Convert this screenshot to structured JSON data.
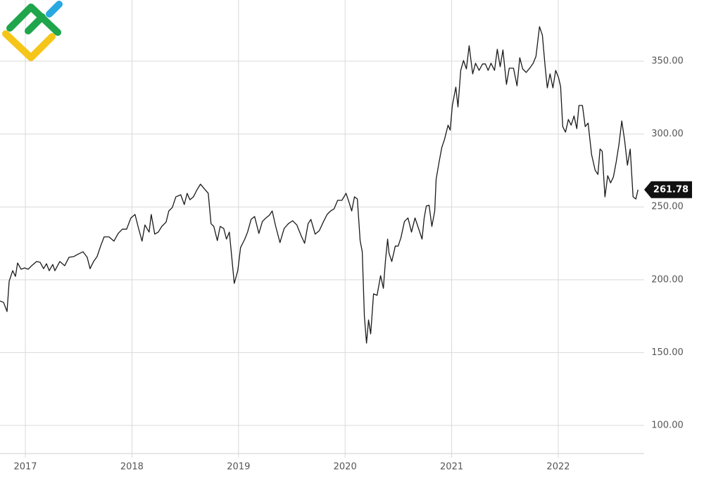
{
  "chart_data": {
    "type": "line",
    "color": "#1a1a1a",
    "grid": true,
    "xlim": [
      2016.762,
      2022.806
    ],
    "ylim": [
      80.7,
      392
    ],
    "xticks": [
      2017,
      2018,
      2019,
      2020,
      2021,
      2022
    ],
    "yticks": [
      {
        "value": 100,
        "label": "100.00"
      },
      {
        "value": 150,
        "label": "150.00"
      },
      {
        "value": 200,
        "label": "200.00"
      },
      {
        "value": 250,
        "label": "250.00"
      },
      {
        "value": 300,
        "label": "300.00"
      },
      {
        "value": 350,
        "label": "350.00"
      }
    ],
    "x": [
      2016.762,
      2016.795,
      2016.828,
      2016.848,
      2016.881,
      2016.907,
      2016.927,
      2016.96,
      2016.993,
      2017.026,
      2017.059,
      2017.105,
      2017.138,
      2017.171,
      2017.198,
      2017.224,
      2017.257,
      2017.277,
      2017.323,
      2017.369,
      2017.409,
      2017.455,
      2017.488,
      2017.541,
      2017.58,
      2017.607,
      2017.64,
      2017.673,
      2017.706,
      2017.739,
      2017.785,
      2017.831,
      2017.871,
      2017.91,
      2017.95,
      2017.99,
      2018.029,
      2018.062,
      2018.095,
      2018.122,
      2018.161,
      2018.181,
      2018.214,
      2018.247,
      2018.28,
      2018.32,
      2018.346,
      2018.379,
      2018.412,
      2018.458,
      2018.491,
      2018.518,
      2018.544,
      2018.577,
      2018.61,
      2018.643,
      2018.676,
      2018.716,
      2018.742,
      2018.768,
      2018.801,
      2018.828,
      2018.861,
      2018.887,
      2018.914,
      2018.96,
      2018.993,
      2019.019,
      2019.059,
      2019.085,
      2019.118,
      2019.151,
      2019.191,
      2019.224,
      2019.257,
      2019.29,
      2019.316,
      2019.349,
      2019.389,
      2019.428,
      2019.468,
      2019.508,
      2019.547,
      2019.587,
      2019.62,
      2019.653,
      2019.679,
      2019.719,
      2019.758,
      2019.798,
      2019.831,
      2019.864,
      2019.897,
      2019.93,
      2019.97,
      2020.009,
      2020.042,
      2020.062,
      2020.088,
      2020.115,
      2020.141,
      2020.161,
      2020.181,
      2020.201,
      2020.22,
      2020.24,
      2020.267,
      2020.3,
      2020.333,
      2020.359,
      2020.379,
      2020.399,
      2020.412,
      2020.438,
      2020.471,
      2020.498,
      2020.524,
      2020.557,
      2020.59,
      2020.623,
      2020.656,
      2020.689,
      2020.722,
      2020.742,
      2020.762,
      2020.788,
      2020.814,
      2020.841,
      2020.854,
      2020.88,
      2020.907,
      2020.933,
      2020.966,
      2020.986,
      2021.006,
      2021.039,
      2021.059,
      2021.085,
      2021.111,
      2021.138,
      2021.164,
      2021.197,
      2021.224,
      2021.257,
      2021.29,
      2021.316,
      2021.342,
      2021.369,
      2021.402,
      2021.428,
      2021.455,
      2021.481,
      2021.514,
      2021.54,
      2021.58,
      2021.613,
      2021.639,
      2021.666,
      2021.699,
      2021.732,
      2021.765,
      2021.791,
      2021.824,
      2021.851,
      2021.877,
      2021.897,
      2021.923,
      2021.95,
      2021.976,
      2022.002,
      2022.022,
      2022.042,
      2022.068,
      2022.095,
      2022.121,
      2022.148,
      2022.174,
      2022.194,
      2022.227,
      2022.253,
      2022.28,
      2022.313,
      2022.346,
      2022.372,
      2022.392,
      2022.412,
      2022.438,
      2022.464,
      2022.491,
      2022.517,
      2022.544,
      2022.57,
      2022.596,
      2022.623,
      2022.649,
      2022.675,
      2022.702,
      2022.728,
      2022.748
    ],
    "values": [
      185.4,
      184.5,
      178.2,
      199.0,
      206.2,
      202.3,
      211.5,
      207.2,
      208.1,
      207.2,
      209.6,
      212.5,
      212.0,
      207.6,
      211.0,
      206.2,
      210.5,
      206.2,
      212.5,
      209.6,
      215.4,
      215.9,
      217.3,
      219.2,
      215.4,
      207.6,
      212.5,
      215.9,
      223.1,
      229.4,
      229.4,
      226.5,
      231.8,
      234.7,
      234.7,
      242.4,
      244.8,
      235.2,
      226.5,
      237.6,
      232.7,
      244.8,
      231.3,
      232.7,
      236.6,
      239.5,
      247.2,
      249.6,
      256.9,
      258.3,
      251.6,
      259.3,
      254.9,
      256.9,
      261.7,
      265.6,
      262.7,
      259.3,
      238.5,
      236.6,
      226.9,
      236.6,
      235.2,
      227.9,
      232.7,
      197.5,
      206.2,
      222.1,
      227.9,
      232.7,
      241.4,
      243.4,
      231.8,
      240.0,
      242.4,
      244.3,
      247.2,
      236.6,
      225.5,
      235.2,
      238.5,
      240.5,
      237.6,
      230.3,
      225.0,
      238.5,
      241.4,
      231.3,
      233.7,
      240.0,
      244.8,
      247.2,
      248.7,
      254.5,
      254.5,
      259.3,
      252.0,
      247.2,
      256.9,
      255.4,
      226.9,
      219.2,
      174.8,
      156.5,
      172.4,
      162.8,
      190.3,
      189.3,
      202.8,
      194.1,
      213.4,
      227.9,
      218.3,
      212.5,
      223.1,
      223.1,
      228.9,
      240.0,
      242.4,
      232.7,
      242.4,
      235.2,
      227.9,
      242.4,
      250.6,
      251.1,
      236.6,
      247.2,
      268.9,
      280.0,
      290.7,
      296.4,
      306.1,
      302.7,
      319.6,
      332.2,
      318.6,
      343.7,
      350.5,
      344.7,
      360.6,
      341.3,
      348.6,
      343.7,
      348.1,
      348.1,
      343.7,
      348.6,
      343.7,
      358.2,
      346.2,
      357.7,
      334.1,
      345.2,
      345.2,
      333.1,
      352.4,
      344.7,
      342.3,
      345.2,
      348.6,
      353.4,
      373.7,
      367.9,
      346.2,
      331.7,
      341.3,
      331.7,
      343.7,
      338.9,
      332.6,
      305.1,
      301.3,
      310.0,
      306.1,
      312.4,
      303.7,
      319.6,
      319.6,
      305.1,
      307.5,
      285.8,
      275.2,
      272.3,
      289.7,
      288.2,
      256.9,
      271.4,
      266.5,
      270.4,
      281.0,
      293.1,
      309.0,
      295.5,
      278.6,
      289.7,
      256.9,
      255.4,
      261.78
    ]
  }
}
